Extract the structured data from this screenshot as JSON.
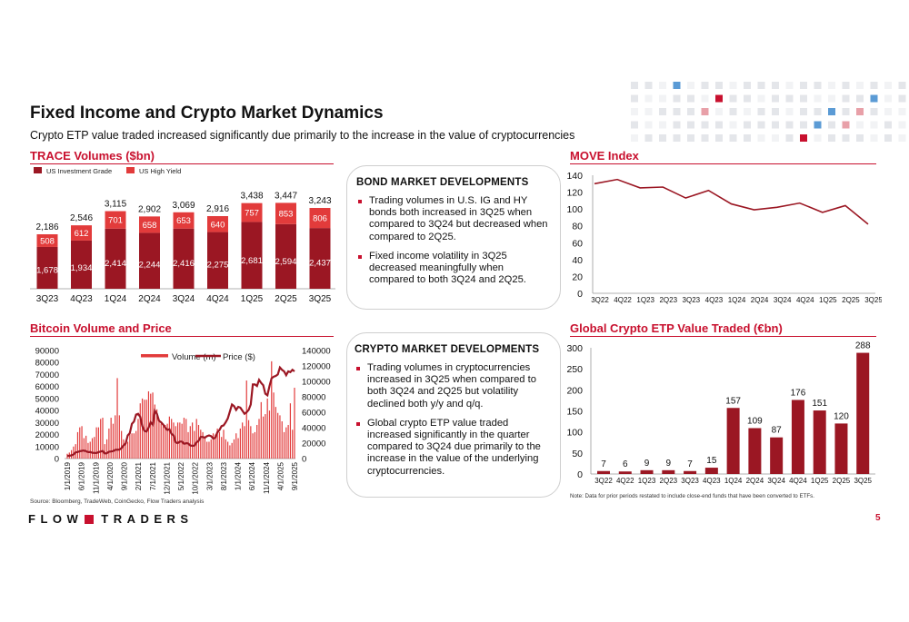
{
  "header": {
    "title": "Fixed Income and Crypto Market Dynamics",
    "subtitle": "Crypto ETP value traded increased significantly due primarily to the increase in the value of cryptocurrencies"
  },
  "colors": {
    "dark_red": "#9b1723",
    "bright_red": "#e23b3b",
    "accent": "#c8102e"
  },
  "sections": {
    "trace": "TRACE Volumes ($bn)",
    "move": "MOVE Index",
    "bitcoin": "Bitcoin Volume and Price",
    "etp": "Global Crypto ETP Value Traded (€bn)"
  },
  "bond_box": {
    "heading": "BOND MARKET DEVELOPMENTS",
    "bullets": [
      "Trading volumes in U.S. IG and HY bonds both increased in 3Q25 when compared to 3Q24 but decreased when compared to 2Q25.",
      "Fixed income volatility in 3Q25 decreased meaningfully when compared to both 3Q24 and 2Q25."
    ]
  },
  "crypto_box": {
    "heading": "CRYPTO MARKET DEVELOPMENTS",
    "bullets": [
      "Trading volumes in cryptocurrencies increased in 3Q25 when compared to both 3Q24 and 2Q25 but volatility declined both y/y and q/q.",
      "Global crypto ETP value traded increased significantly in the quarter compared to 3Q24 due primarily to the increase in the value of the underlying cryptocurrencies."
    ]
  },
  "footer": {
    "source": "Source: Bloomberg, TradeWeb, CoinGecko, Flow Traders analysis",
    "note": "Note: Data for prior periods restated to include close-end funds that have been converted to ETFs.",
    "logo_left": "FLOW",
    "logo_right": "TRADERS",
    "page_number": "5"
  },
  "chart_data": [
    {
      "id": "trace",
      "type": "bar",
      "stacked": true,
      "title": "TRACE Volumes ($bn)",
      "categories": [
        "3Q23",
        "4Q23",
        "1Q24",
        "2Q24",
        "3Q24",
        "4Q24",
        "1Q25",
        "2Q25",
        "3Q25"
      ],
      "series": [
        {
          "name": "US Investment Grade",
          "values": [
            1678,
            1934,
            2414,
            2244,
            2416,
            2275,
            2681,
            2594,
            2437
          ]
        },
        {
          "name": "US High Yield",
          "values": [
            508,
            612,
            701,
            658,
            653,
            640,
            757,
            853,
            806
          ]
        }
      ],
      "totals": [
        "2,186",
        "2,546",
        "3,115",
        "2,902",
        "3,069",
        "2,916",
        "3,438",
        "3,447",
        "3,243"
      ],
      "ig_labels": [
        "1,678",
        "1,934",
        "2,414",
        "2,244",
        "2,416",
        "2,275",
        "2,681",
        "2,594",
        "2,437"
      ],
      "hy_labels": [
        "508",
        "612",
        "701",
        "658",
        "653",
        "640",
        "757",
        "853",
        "806"
      ],
      "ylim": [
        0,
        3600
      ]
    },
    {
      "id": "move",
      "type": "line",
      "title": "MOVE Index",
      "categories": [
        "3Q22",
        "4Q22",
        "1Q23",
        "2Q23",
        "3Q23",
        "4Q23",
        "1Q24",
        "2Q24",
        "3Q24",
        "4Q24",
        "1Q25",
        "2Q25",
        "3Q25"
      ],
      "values": [
        130,
        135,
        125,
        126,
        113,
        122,
        106,
        99,
        102,
        107,
        96,
        104,
        82
      ],
      "ylim": [
        0,
        140
      ],
      "yticks": [
        0,
        20,
        40,
        60,
        80,
        100,
        120,
        140
      ]
    },
    {
      "id": "bitcoin",
      "type": "bar+line",
      "title": "Bitcoin Volume and Price",
      "legend": [
        "Volume (m)",
        "Price ($)"
      ],
      "x_labels": [
        "1/1/2019",
        "6/1/2019",
        "11/1/2019",
        "4/1/2020",
        "9/1/2020",
        "2/1/2021",
        "7/1/2021",
        "12/1/2021",
        "5/1/2022",
        "10/1/2022",
        "3/1/2023",
        "8/1/2023",
        "1/1/2024",
        "6/1/2024",
        "11/1/2024",
        "4/1/2025",
        "9/1/2025"
      ],
      "volume_ylim": [
        0,
        90000
      ],
      "volume_yticks": [
        0,
        10000,
        20000,
        30000,
        40000,
        50000,
        60000,
        70000,
        80000,
        90000
      ],
      "price_ylim": [
        0,
        140000
      ],
      "price_yticks": [
        0,
        20000,
        40000,
        60000,
        80000,
        100000,
        120000,
        140000
      ],
      "volume_values": [
        4000,
        5000,
        7000,
        10000,
        12000,
        22000,
        26000,
        27000,
        17000,
        19000,
        13000,
        14000,
        17000,
        18000,
        26000,
        26000,
        33000,
        34000,
        12000,
        16000,
        25000,
        34000,
        29000,
        36000,
        67000,
        36000,
        23000,
        16000,
        13000,
        14000,
        21000,
        21000,
        21000,
        23000,
        33000,
        46000,
        50000,
        49000,
        49000,
        56000,
        54000,
        55000,
        45000,
        41000,
        31000,
        29000,
        27000,
        28000,
        29000,
        35000,
        33000,
        30000,
        27000,
        30000,
        30000,
        29000,
        34000,
        33000,
        22000,
        27000,
        30000,
        23000,
        33000,
        28000,
        24000,
        22000,
        18000,
        14000,
        14000,
        16000,
        21000,
        20000,
        25000,
        22000,
        18000,
        24000,
        16000,
        14000,
        11000,
        13000,
        16000,
        21000,
        17000,
        25000,
        30000,
        27000,
        65000,
        32000,
        27000,
        21000,
        22000,
        28000,
        33000,
        47000,
        35000,
        37000,
        50000,
        40000,
        81000,
        55000,
        43000,
        38000,
        36000,
        31000,
        22000,
        26000,
        28000,
        46000,
        24000,
        59000
      ],
      "price_values": [
        3500,
        3700,
        4100,
        5300,
        8000,
        8500,
        9500,
        10000,
        10500,
        9500,
        8300,
        8500,
        7500,
        7300,
        7200,
        8300,
        9000,
        9800,
        6500,
        7000,
        8800,
        9200,
        9600,
        11200,
        11500,
        11600,
        13500,
        17000,
        19500,
        30000,
        33000,
        45000,
        48000,
        57000,
        58000,
        54000,
        42000,
        36000,
        35000,
        40000,
        47000,
        44000,
        62000,
        58000,
        49000,
        47000,
        44000,
        40000,
        37000,
        38000,
        32000,
        30000,
        21000,
        20000,
        22000,
        22000,
        19000,
        20000,
        19500,
        17000,
        16500,
        16800,
        21000,
        23000,
        28000,
        28000,
        27000,
        29000,
        30000,
        29000,
        26000,
        27000,
        34000,
        37000,
        42000,
        43000,
        47000,
        52000,
        61000,
        70000,
        68000,
        63000,
        67000,
        66000,
        62000,
        58000,
        60000,
        63000,
        70000,
        96000,
        96000,
        94000,
        102000,
        98000,
        95000,
        84000,
        82000,
        94000,
        104000,
        106000,
        107000,
        109000,
        118000,
        115000,
        113000,
        108000,
        113000,
        112000,
        115000,
        113000
      ]
    },
    {
      "id": "etp",
      "type": "bar",
      "title": "Global Crypto ETP Value Traded (€bn)",
      "categories": [
        "3Q22",
        "4Q22",
        "1Q23",
        "2Q23",
        "3Q23",
        "4Q23",
        "1Q24",
        "2Q24",
        "3Q24",
        "4Q24",
        "1Q25",
        "2Q25",
        "3Q25"
      ],
      "values": [
        7,
        6,
        9,
        9,
        7,
        15,
        157,
        109,
        87,
        176,
        151,
        120,
        288
      ],
      "labels": [
        "7",
        "6",
        "9",
        "9",
        "7",
        "15",
        "157",
        "109",
        "87",
        "176",
        "151",
        "120",
        "288"
      ],
      "ylim": [
        0,
        300
      ],
      "yticks": [
        0,
        50,
        100,
        150,
        200,
        250,
        300
      ]
    }
  ]
}
